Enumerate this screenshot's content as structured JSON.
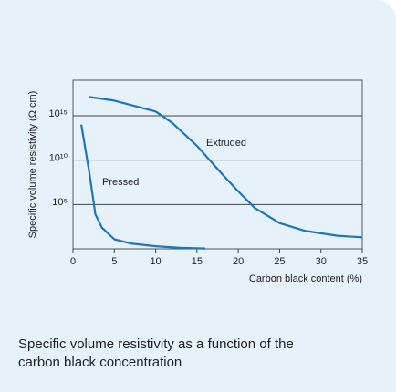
{
  "chart_data": {
    "type": "line",
    "caption": "Specific volume resistivity as a function of the carbon black concentration",
    "x_label": "Carbon black content (%)",
    "y_label": "Specific volume resistivity (Ω cm)",
    "xlim": [
      0,
      35
    ],
    "xticks": [
      0,
      5,
      10,
      15,
      20,
      25,
      30,
      35
    ],
    "ylim": [
      1,
      1e+19
    ],
    "yscale": "log",
    "yticks": [
      {
        "value": 100000,
        "label": "10⁵"
      },
      {
        "value": 10000000000,
        "label": "10¹⁰"
      },
      {
        "value": 1000000000000000.0,
        "label": "10¹⁵"
      }
    ],
    "grid": true,
    "series": [
      {
        "name": "Extruded",
        "color": "#1a78b8",
        "x": [
          2,
          5,
          7,
          10,
          12,
          15,
          18,
          20,
          22,
          25,
          28,
          32,
          35
        ],
        "values": [
          1.3e+17,
          5e+16,
          1.6e+16,
          3000000000000000.0,
          160000000000000.0,
          400000000000.0,
          300000000.0,
          3000000.0,
          40000.0,
          800,
          110,
          30,
          20
        ]
      },
      {
        "name": "Pressed",
        "color": "#1a78b8",
        "x": [
          1,
          2,
          2.7,
          3.5,
          5,
          7,
          10,
          13,
          16
        ],
        "values": [
          100000000000000.0,
          300000000.0,
          8000,
          250,
          12,
          4,
          2,
          1.3,
          1.1
        ]
      }
    ]
  }
}
